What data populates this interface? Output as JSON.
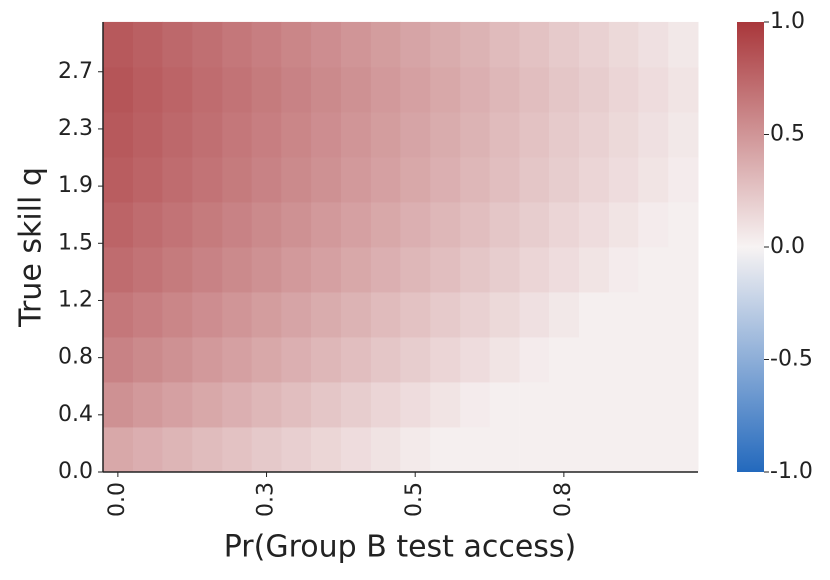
{
  "chart_data": {
    "type": "heatmap",
    "xlabel": "Pr(Group B test access)",
    "ylabel": "True skill q",
    "x": [
      0,
      0.053,
      0.105,
      0.158,
      0.211,
      0.263,
      0.316,
      0.368,
      0.421,
      0.474,
      0.526,
      0.579,
      0.632,
      0.684,
      0.737,
      0.789,
      0.842,
      0.895,
      0.947,
      1
    ],
    "xlim": [
      -0.0263,
      1.0263
    ],
    "xticks": [
      {
        "value": 0,
        "label": "0.0"
      },
      {
        "value": 0.263,
        "label": "0.3"
      },
      {
        "value": 0.526,
        "label": "0.5"
      },
      {
        "value": 0.789,
        "label": "0.8"
      }
    ],
    "y": [
      0.152,
      0.455,
      0.758,
      1.061,
      1.364,
      1.667,
      1.97,
      2.273,
      2.576,
      2.879
    ],
    "ylim": [
      0,
      3.03
    ],
    "yticks": [
      {
        "value": 0,
        "label": "0.0"
      },
      {
        "value": 0.385,
        "label": "0.4"
      },
      {
        "value": 0.77,
        "label": "0.8"
      },
      {
        "value": 1.155,
        "label": "1.2"
      },
      {
        "value": 1.54,
        "label": "1.5"
      },
      {
        "value": 1.925,
        "label": "1.9"
      },
      {
        "value": 2.31,
        "label": "2.3"
      },
      {
        "value": 2.695,
        "label": "2.7"
      }
    ],
    "z": [
      [
        0.4,
        0.365,
        0.33,
        0.295,
        0.26,
        0.225,
        0.19,
        0.155,
        0.12,
        0.085,
        0.05,
        0.02,
        0.02,
        0.02,
        0.02,
        0.02,
        0.02,
        0.02,
        0.02,
        0.02
      ],
      [
        0.52,
        0.48,
        0.44,
        0.4,
        0.36,
        0.32,
        0.28,
        0.24,
        0.2,
        0.16,
        0.12,
        0.08,
        0.04,
        0.02,
        0.02,
        0.02,
        0.02,
        0.02,
        0.02,
        0.02
      ],
      [
        0.6,
        0.56,
        0.52,
        0.48,
        0.44,
        0.4,
        0.36,
        0.32,
        0.28,
        0.24,
        0.2,
        0.16,
        0.12,
        0.08,
        0.04,
        0.02,
        0.02,
        0.02,
        0.02,
        0.02
      ],
      [
        0.66,
        0.62,
        0.58,
        0.54,
        0.5,
        0.46,
        0.42,
        0.38,
        0.34,
        0.3,
        0.26,
        0.22,
        0.18,
        0.14,
        0.1,
        0.06,
        0.02,
        0.02,
        0.02,
        0.02
      ],
      [
        0.72,
        0.68,
        0.64,
        0.6,
        0.56,
        0.52,
        0.48,
        0.44,
        0.4,
        0.36,
        0.32,
        0.28,
        0.24,
        0.2,
        0.16,
        0.12,
        0.08,
        0.04,
        0.02,
        0.02
      ],
      [
        0.76,
        0.72,
        0.68,
        0.64,
        0.6,
        0.56,
        0.52,
        0.48,
        0.44,
        0.4,
        0.36,
        0.32,
        0.28,
        0.24,
        0.2,
        0.16,
        0.12,
        0.08,
        0.04,
        0.02
      ],
      [
        0.8,
        0.76,
        0.72,
        0.68,
        0.64,
        0.6,
        0.56,
        0.52,
        0.48,
        0.44,
        0.4,
        0.36,
        0.32,
        0.28,
        0.24,
        0.2,
        0.16,
        0.12,
        0.08,
        0.04
      ],
      [
        0.82,
        0.78,
        0.74,
        0.7,
        0.66,
        0.62,
        0.58,
        0.54,
        0.5,
        0.46,
        0.42,
        0.38,
        0.34,
        0.3,
        0.26,
        0.22,
        0.18,
        0.14,
        0.1,
        0.06
      ],
      [
        0.84,
        0.8,
        0.76,
        0.72,
        0.68,
        0.64,
        0.6,
        0.56,
        0.52,
        0.48,
        0.44,
        0.4,
        0.36,
        0.32,
        0.28,
        0.24,
        0.2,
        0.16,
        0.12,
        0.08
      ],
      [
        0.82,
        0.78,
        0.74,
        0.7,
        0.66,
        0.62,
        0.58,
        0.54,
        0.5,
        0.46,
        0.42,
        0.38,
        0.34,
        0.3,
        0.26,
        0.22,
        0.18,
        0.14,
        0.1,
        0.06
      ]
    ],
    "colormap": [
      "#2369bd",
      "#f7f3f3",
      "#a9373b"
    ],
    "clim": [
      -1,
      1
    ],
    "cticks": [
      {
        "value": -1,
        "label": "-1.0"
      },
      -0.5,
      {
        "value": 0,
        "label": "0.0"
      },
      0.5,
      {
        "value": 1,
        "label": "1.0"
      }
    ]
  }
}
